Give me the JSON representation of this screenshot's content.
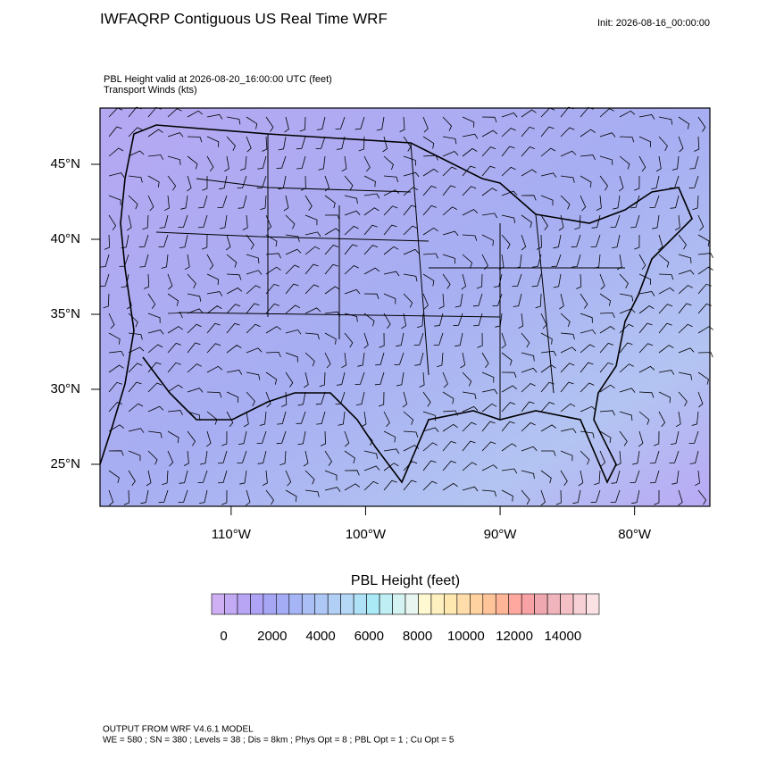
{
  "header": {
    "title": "IWFAQRP Contiguous US Real Time WRF",
    "init": "Init: 2026-08-16_00:00:00"
  },
  "map": {
    "subtitle_1": "PBL Height valid at 2026-08-20_16:00:00 UTC   (feet)",
    "subtitle_2": "Transport Winds   (kts)",
    "xlim": [
      -119.75,
      -74.4
    ],
    "ylim": [
      22.2,
      48.75
    ],
    "xticks": [
      {
        "value": -110,
        "label": "110°W"
      },
      {
        "value": -100,
        "label": "100°W"
      },
      {
        "value": -90,
        "label": "90°W"
      },
      {
        "value": -80,
        "label": "80°W"
      }
    ],
    "yticks": [
      {
        "value": 25,
        "label": "25°N"
      },
      {
        "value": 30,
        "label": "30°N"
      },
      {
        "value": 35,
        "label": "35°N"
      },
      {
        "value": 40,
        "label": "40°N"
      },
      {
        "value": 45,
        "label": "45°N"
      }
    ]
  },
  "colorbar": {
    "title": "PBL Height  (feet)",
    "clim": [
      -500,
      15500
    ],
    "ticks": [
      0,
      2000,
      4000,
      6000,
      8000,
      10000,
      12000,
      14000
    ],
    "colors": [
      "#cfb0f5",
      "#c3aaf5",
      "#b8a6f5",
      "#aea3f5",
      "#a6a6f5",
      "#a4acf5",
      "#a6b5f5",
      "#aabff5",
      "#aec8f5",
      "#b2d0f5",
      "#b5d8f7",
      "#b0e2f7",
      "#aaeaf7",
      "#c0eef5",
      "#d5f2f3",
      "#e8f5f0",
      "#fff8d0",
      "#fff0c0",
      "#ffe7b0",
      "#ffddaa",
      "#ffd2a0",
      "#ffc49a",
      "#ffb698",
      "#ffa8a0",
      "#f8a2a6",
      "#f0a8b0",
      "#f0b4bc",
      "#f4c0c6",
      "#f6d0d4",
      "#fae2e4"
    ]
  },
  "footer": {
    "line_1": "OUTPUT FROM WRF V4.6.1 MODEL",
    "line_2": "WE = 580 ; SN = 380 ; Levels = 38 ; Dis = 8km ; Phys Opt = 8 ; PBL Opt = 1 ; Cu Opt = 5"
  }
}
